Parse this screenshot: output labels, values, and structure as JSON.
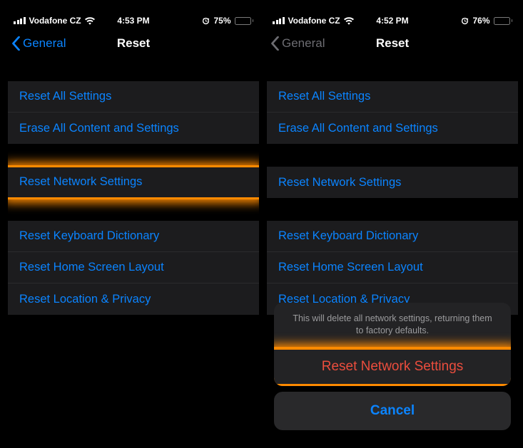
{
  "colors": {
    "bg": "#000000",
    "row_bg": "#1c1c1e",
    "separator": "#2b2b2d",
    "ios_blue": "#0b84ff",
    "ios_red": "#eb4d3d",
    "text_white": "#ffffff",
    "text_dim": "#6d6d72",
    "sheet_bg": "#232325",
    "sheet_cancel_bg": "#29292b",
    "sheet_header_text": "#9b9b9d",
    "highlight": "#ff8a00",
    "battery_fill": "#f7ce46",
    "battery_border": "#7a7a7a"
  },
  "left": {
    "status": {
      "carrier": "Vodafone CZ",
      "time": "4:53 PM",
      "battery_text": "75%",
      "battery_level": 0.75
    },
    "nav": {
      "back_label": "General",
      "back_enabled": true,
      "title": "Reset"
    },
    "group1": [
      {
        "label": "Reset All Settings",
        "name": "reset-all-settings"
      },
      {
        "label": "Erase All Content and Settings",
        "name": "erase-all-content"
      }
    ],
    "highlight_row": {
      "label": "Reset Network Settings",
      "name": "reset-network-settings"
    },
    "group3": [
      {
        "label": "Reset Keyboard Dictionary",
        "name": "reset-keyboard-dictionary"
      },
      {
        "label": "Reset Home Screen Layout",
        "name": "reset-home-screen-layout"
      },
      {
        "label": "Reset Location & Privacy",
        "name": "reset-location-privacy"
      }
    ]
  },
  "right": {
    "status": {
      "carrier": "Vodafone CZ",
      "time": "4:52 PM",
      "battery_text": "76%",
      "battery_level": 0.76
    },
    "nav": {
      "back_label": "General",
      "back_enabled": false,
      "title": "Reset"
    },
    "group1": [
      {
        "label": "Reset All Settings",
        "name": "reset-all-settings"
      },
      {
        "label": "Erase All Content and Settings",
        "name": "erase-all-content"
      }
    ],
    "group2": [
      {
        "label": "Reset Network Settings",
        "name": "reset-network-settings"
      }
    ],
    "group3": [
      {
        "label": "Reset Keyboard Dictionary",
        "name": "reset-keyboard-dictionary"
      },
      {
        "label": "Reset Home Screen Layout",
        "name": "reset-home-screen-layout"
      },
      {
        "label": "Reset Location & Privacy",
        "name": "reset-location-privacy"
      }
    ],
    "sheet": {
      "header": "This will delete all network settings, returning them to factory defaults.",
      "confirm": "Reset Network Settings",
      "cancel": "Cancel"
    }
  }
}
